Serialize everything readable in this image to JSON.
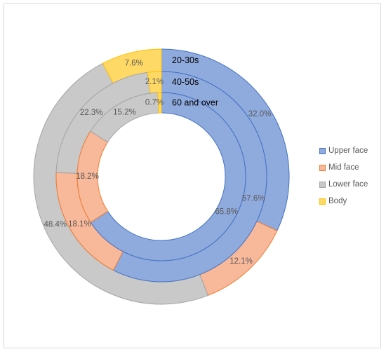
{
  "chart_data": {
    "type": "pie",
    "subtype": "multi-ring doughnut",
    "title": "",
    "legend_position": "right",
    "categories": [
      "Upper face",
      "Mid face",
      "Lower face",
      "Body"
    ],
    "colors": {
      "Upper face": "#8FAADC",
      "Mid face": "#F8B89A",
      "Lower face": "#C9C9C9",
      "Body": "#FFD966"
    },
    "stroke_colors": {
      "Upper face": "#4472C4",
      "Mid face": "#ED7D31",
      "Lower face": "#A5A5A5",
      "Body": "#FFC000"
    },
    "series": [
      {
        "name": "20-30s",
        "values": [
          32.0,
          12.1,
          48.4,
          7.6
        ],
        "labels": [
          "32.0%",
          "12.1%",
          "48.4%",
          "7.6%"
        ]
      },
      {
        "name": "40-50s",
        "values": [
          57.6,
          18.1,
          22.3,
          2.1
        ],
        "labels": [
          "57.6%",
          "18.1%",
          "22.3%",
          "2.1%"
        ]
      },
      {
        "name": "60 and over",
        "values": [
          65.8,
          18.2,
          15.2,
          0.7
        ],
        "labels": [
          "65.8%",
          "18.2%",
          "15.2%",
          "0.7%"
        ]
      }
    ]
  }
}
